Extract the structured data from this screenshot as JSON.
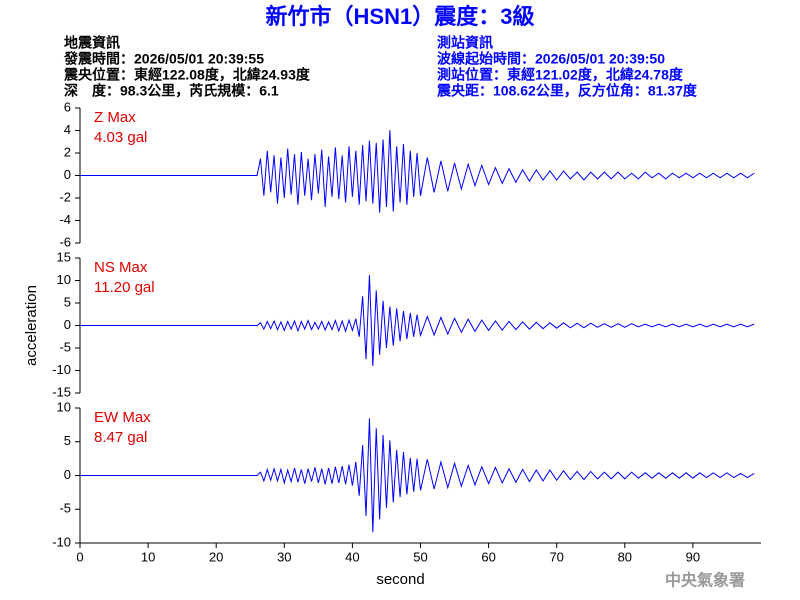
{
  "header": {
    "title": "新竹市（HSN1）震度：3級",
    "left": [
      "地震資訊",
      "發震時間：2026/05/01 20:39:55",
      "震央位置：東經122.08度，北緯24.93度",
      "深　度：98.3公里，芮氏規模：6.1"
    ],
    "right": [
      "測站資訊",
      "波線起始時間：2026/05/01 20:39:50",
      "測站位置：東經121.02度，北緯24.78度",
      "震央距：108.62公里，反方位角：81.37度"
    ],
    "footer": "中央氣象署"
  },
  "chart_data": [
    {
      "type": "line",
      "label": "Z Max",
      "max_label": "4.03 gal",
      "color": "#0000ff",
      "xlim": [
        0,
        100
      ],
      "ylim": [
        -6,
        6
      ],
      "yticks": [
        -6,
        -4,
        -2,
        0,
        2,
        4,
        6
      ],
      "x": [
        0,
        26,
        26.5,
        27,
        27.5,
        28,
        28.5,
        29,
        29.5,
        30,
        30.5,
        31,
        31.5,
        32,
        32.5,
        33,
        33.5,
        34,
        34.5,
        35,
        35.5,
        36,
        36.5,
        37,
        37.5,
        38,
        38.5,
        39,
        39.5,
        40,
        40.5,
        41,
        41.5,
        42,
        42.5,
        43,
        43.5,
        44,
        44.5,
        45,
        45.5,
        46,
        46.5,
        47,
        47.5,
        48,
        48.5,
        49,
        49.5,
        50,
        51,
        52,
        53,
        54,
        55,
        56,
        57,
        58,
        59,
        60,
        61,
        62,
        63,
        64,
        65,
        66,
        67,
        68,
        69,
        70,
        71,
        72,
        73,
        74,
        75,
        76,
        77,
        78,
        79,
        80,
        81,
        82,
        83,
        84,
        85,
        86,
        87,
        88,
        89,
        90,
        91,
        92,
        93,
        94,
        95,
        96,
        97,
        98,
        99
      ],
      "values": [
        0,
        0,
        1.5,
        -1.8,
        2.2,
        -1.5,
        1.8,
        -2.5,
        1.6,
        -2,
        2.4,
        -1.7,
        1.9,
        -2.6,
        2.1,
        -1.8,
        1.5,
        -2.2,
        1.9,
        -1.6,
        2.3,
        -2.8,
        1.7,
        -1.9,
        2.5,
        -2.1,
        1.8,
        -2.4,
        2.6,
        -1.9,
        2.2,
        -2.6,
        2.7,
        -2.3,
        3.1,
        -2.5,
        2.9,
        -3.3,
        3.2,
        -2.8,
        4.03,
        -3.2,
        2.6,
        -2.4,
        2.8,
        -2.6,
        2.2,
        -1.9,
        2.0,
        -1.8,
        1.6,
        -1.5,
        1.3,
        -1.4,
        1.1,
        -1.2,
        1.0,
        -0.9,
        0.9,
        -0.8,
        0.7,
        -0.7,
        0.6,
        -0.6,
        0.5,
        -0.5,
        0.5,
        -0.4,
        0.4,
        -0.4,
        0.4,
        -0.3,
        0.3,
        -0.4,
        0.3,
        -0.3,
        0.3,
        -0.3,
        0.3,
        -0.3,
        0.2,
        -0.3,
        0.3,
        -0.2,
        0.2,
        -0.3,
        0.2,
        -0.2,
        0.2,
        -0.2,
        0.2,
        -0.2,
        0.2,
        -0.2,
        0.2,
        -0.2,
        0.2,
        -0.2,
        0.2
      ]
    },
    {
      "type": "line",
      "label": "NS Max",
      "max_label": "11.20 gal",
      "color": "#0000ff",
      "ylabel": "acceleration",
      "xlim": [
        0,
        100
      ],
      "ylim": [
        -15,
        15
      ],
      "yticks": [
        -15,
        -10,
        -5,
        0,
        5,
        10,
        15
      ],
      "x": [
        0,
        26,
        26.5,
        27,
        27.5,
        28,
        28.5,
        29,
        29.5,
        30,
        30.5,
        31,
        31.5,
        32,
        32.5,
        33,
        33.5,
        34,
        34.5,
        35,
        35.5,
        36,
        36.5,
        37,
        37.5,
        38,
        38.5,
        39,
        39.5,
        40,
        40.5,
        41,
        41.5,
        42,
        42.5,
        43,
        43.5,
        44,
        44.5,
        45,
        45.5,
        46,
        46.5,
        47,
        47.5,
        48,
        48.5,
        49,
        49.5,
        50,
        51,
        52,
        53,
        54,
        55,
        56,
        57,
        58,
        59,
        60,
        61,
        62,
        63,
        64,
        65,
        66,
        67,
        68,
        69,
        70,
        71,
        72,
        73,
        74,
        75,
        76,
        77,
        78,
        79,
        80,
        81,
        82,
        83,
        84,
        85,
        86,
        87,
        88,
        89,
        90,
        91,
        92,
        93,
        94,
        95,
        96,
        97,
        98,
        99
      ],
      "values": [
        0,
        0,
        0.6,
        -0.8,
        0.9,
        -0.7,
        1.0,
        -0.9,
        0.8,
        -1.1,
        0.9,
        -0.8,
        1.0,
        -1.2,
        0.9,
        -0.8,
        1.1,
        -0.9,
        0.7,
        -0.8,
        0.9,
        -1.0,
        0.8,
        -0.9,
        1.1,
        -1.2,
        1.0,
        -1.3,
        1.2,
        -1.1,
        1.5,
        -2.5,
        6.5,
        -7.5,
        11.2,
        -9.0,
        7.8,
        -6.5,
        5.5,
        -5.0,
        4.2,
        -4.5,
        3.8,
        -3.5,
        3.2,
        -3.0,
        2.8,
        -2.5,
        2.4,
        -2.2,
        2.0,
        -2.1,
        1.8,
        -1.9,
        1.6,
        -1.5,
        1.4,
        -1.3,
        1.2,
        -1.1,
        1.0,
        -1.0,
        0.9,
        -0.9,
        0.8,
        -0.8,
        0.7,
        -0.7,
        0.6,
        -0.6,
        0.6,
        -0.5,
        0.5,
        -0.5,
        0.5,
        -0.4,
        0.4,
        -0.4,
        0.4,
        -0.4,
        0.4,
        -0.3,
        0.3,
        -0.3,
        0.3,
        -0.3,
        0.3,
        -0.3,
        0.3,
        -0.3,
        0.3,
        -0.3,
        0.3,
        -0.3,
        0.3,
        -0.3,
        0.3,
        -0.3,
        0.3
      ]
    },
    {
      "type": "line",
      "label": "EW Max",
      "max_label": "8.47 gal",
      "color": "#0000ff",
      "xlabel": "second",
      "xlim": [
        0,
        100
      ],
      "xticks": [
        0,
        10,
        20,
        30,
        40,
        50,
        60,
        70,
        80,
        90
      ],
      "ylim": [
        -10,
        10
      ],
      "yticks": [
        -10,
        -5,
        0,
        5,
        10
      ],
      "x": [
        0,
        26,
        26.5,
        27,
        27.5,
        28,
        28.5,
        29,
        29.5,
        30,
        30.5,
        31,
        31.5,
        32,
        32.5,
        33,
        33.5,
        34,
        34.5,
        35,
        35.5,
        36,
        36.5,
        37,
        37.5,
        38,
        38.5,
        39,
        39.5,
        40,
        40.5,
        41,
        41.5,
        42,
        42.5,
        43,
        43.5,
        44,
        44.5,
        45,
        45.5,
        46,
        46.5,
        47,
        47.5,
        48,
        48.5,
        49,
        49.5,
        50,
        51,
        52,
        53,
        54,
        55,
        56,
        57,
        58,
        59,
        60,
        61,
        62,
        63,
        64,
        65,
        66,
        67,
        68,
        69,
        70,
        71,
        72,
        73,
        74,
        75,
        76,
        77,
        78,
        79,
        80,
        81,
        82,
        83,
        84,
        85,
        86,
        87,
        88,
        89,
        90,
        91,
        92,
        93,
        94,
        95,
        96,
        97,
        98,
        99
      ],
      "values": [
        0,
        0,
        0.5,
        -0.8,
        0.9,
        -0.7,
        1.0,
        -0.8,
        0.9,
        -1.1,
        0.8,
        -0.9,
        1.1,
        -1.0,
        0.9,
        -1.2,
        1.0,
        -0.9,
        1.2,
        -1.1,
        1.0,
        -1.3,
        1.1,
        -1.2,
        1.3,
        -1.1,
        1.4,
        -1.3,
        1.6,
        -1.5,
        2.0,
        -3.0,
        4.5,
        -6.0,
        8.47,
        -8.4,
        7.0,
        -6.5,
        6.0,
        -4.8,
        5.2,
        -4.0,
        3.8,
        -3.2,
        3.5,
        -2.8,
        2.6,
        -2.4,
        2.5,
        -2.2,
        2.4,
        -2.0,
        2.0,
        -1.8,
        1.8,
        -1.6,
        1.5,
        -1.4,
        1.3,
        -1.2,
        1.2,
        -1.1,
        1.0,
        -1.0,
        0.9,
        -0.9,
        0.8,
        -0.8,
        0.8,
        -0.7,
        0.7,
        -0.6,
        0.6,
        -0.6,
        0.6,
        -0.5,
        0.5,
        -0.5,
        0.5,
        -0.5,
        0.5,
        -0.4,
        0.4,
        -0.4,
        0.4,
        -0.4,
        0.4,
        -0.4,
        0.4,
        -0.4,
        0.4,
        -0.3,
        0.4,
        -0.3,
        0.4,
        -0.3,
        0.3,
        -0.3,
        0.3
      ]
    }
  ]
}
